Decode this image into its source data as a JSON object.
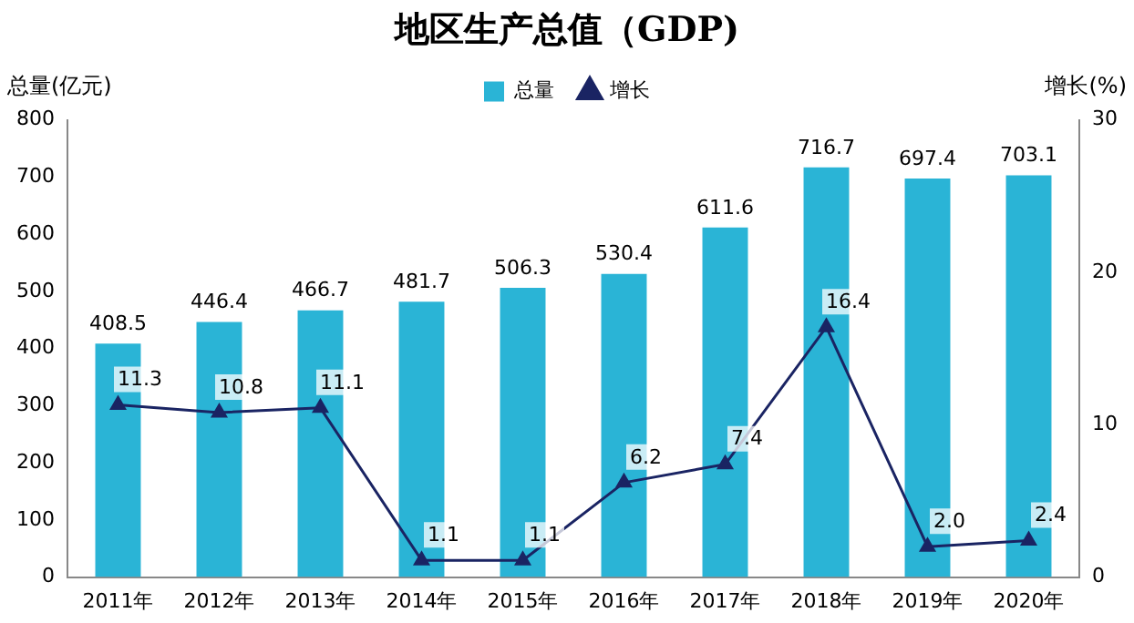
{
  "chart_data": {
    "type": "bar",
    "title": "地区生产总值（GDP)",
    "ylabel": "总量(亿元)",
    "y2label": "增长(%)",
    "categories": [
      "2011年",
      "2012年",
      "2013年",
      "2014年",
      "2015年",
      "2016年",
      "2017年",
      "2018年",
      "2019年",
      "2020年"
    ],
    "series": [
      {
        "name": "总量",
        "color": "#2ab4d6",
        "values": [
          408.5,
          446.4,
          466.7,
          481.7,
          506.3,
          530.4,
          611.6,
          716.7,
          697.4,
          703.1
        ],
        "value_labels": [
          "408.5",
          "446.4",
          "466.7",
          "481.7",
          "506.3",
          "530.4",
          "611.6",
          "716.7",
          "697.4",
          "703.1"
        ]
      },
      {
        "name": "增长",
        "type": "line",
        "axis": "y2",
        "color": "#1a2463",
        "marker": "triangle",
        "values": [
          11.3,
          10.8,
          11.1,
          1.1,
          1.1,
          6.2,
          7.4,
          16.4,
          2.0,
          2.4
        ],
        "value_labels": [
          "11.3",
          "10.8",
          "11.1",
          "1.1",
          "1.1",
          "6.2",
          "7.4",
          "16.4",
          "2.0",
          "2.4"
        ]
      }
    ],
    "ylim": [
      0,
      800
    ],
    "yticks": [
      0,
      100,
      200,
      300,
      400,
      500,
      600,
      700,
      800
    ],
    "y2lim": [
      0,
      30
    ],
    "y2ticks": [
      0,
      10,
      20,
      30
    ],
    "grid": false,
    "legend": "top"
  }
}
